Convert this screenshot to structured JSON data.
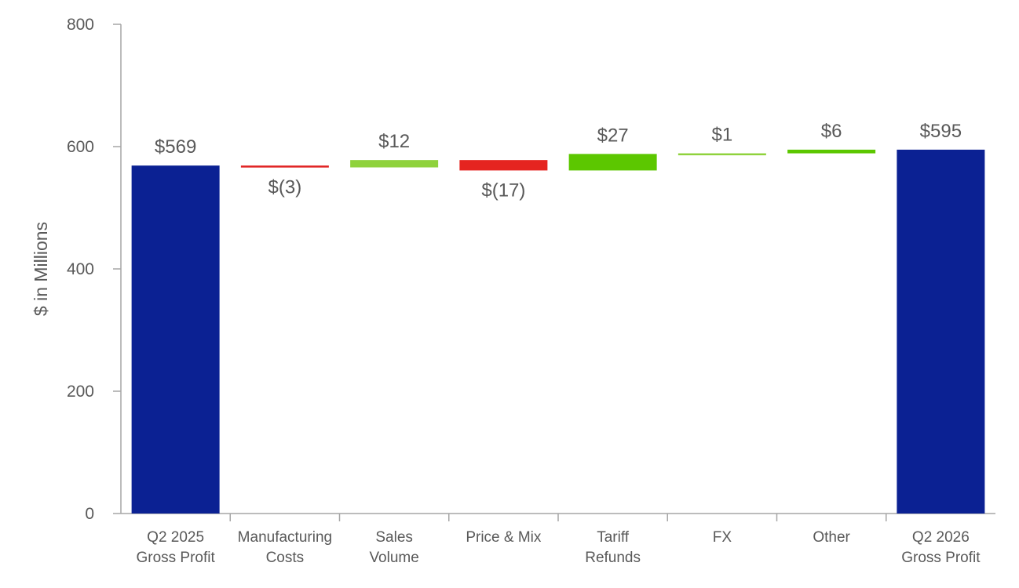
{
  "chart_data": {
    "type": "waterfall",
    "ylabel": "$ in Millions",
    "ylim": [
      0,
      800
    ],
    "yticks": [
      "0",
      "200",
      "400",
      "600",
      "800"
    ],
    "grid": false,
    "categories": [
      [
        "Q2 2025",
        "Gross Profit"
      ],
      [
        "Manufacturing",
        "Costs"
      ],
      [
        "Sales",
        "Volume"
      ],
      [
        "Price & Mix"
      ],
      [
        "Tariff",
        "Refunds"
      ],
      [
        "FX"
      ],
      [
        "Other"
      ],
      [
        "Q2 2026",
        "Gross Profit"
      ]
    ],
    "values": [
      569,
      -3,
      12,
      -17,
      27,
      1,
      6,
      595
    ],
    "kinds": [
      "total",
      "delta",
      "delta",
      "delta",
      "delta",
      "delta",
      "delta",
      "total"
    ],
    "labels": [
      "$569",
      "$(3)",
      "$12",
      "$(17)",
      "$27",
      "$1",
      "$6",
      "$595"
    ],
    "colors": [
      "#0b2193",
      "#e02222",
      "#8fd23c",
      "#e52420",
      "#5cc700",
      "#8fd23c",
      "#5cc700",
      "#0b2193"
    ]
  }
}
